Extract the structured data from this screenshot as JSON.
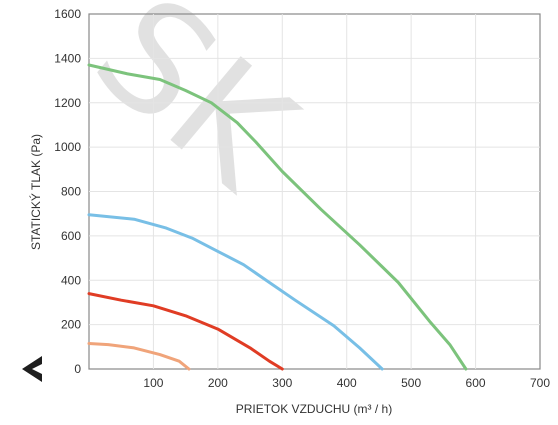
{
  "chart_data": {
    "type": "line",
    "xlabel": "PRIETOK VZDUCHU (m³ / h)",
    "ylabel": "STATICKÝ TLAK (Pa)",
    "xlim": [
      0,
      700
    ],
    "ylim": [
      0,
      1600
    ],
    "x_ticks": [
      100,
      200,
      300,
      400,
      500,
      600,
      700
    ],
    "y_ticks": [
      0,
      200,
      400,
      600,
      800,
      1000,
      1200,
      1400,
      1600
    ],
    "grid": true,
    "legend": "none",
    "series": [
      {
        "color": "#f0a47a",
        "points": [
          [
            0,
            115
          ],
          [
            30,
            110
          ],
          [
            70,
            95
          ],
          [
            110,
            65
          ],
          [
            140,
            35
          ],
          [
            155,
            0
          ]
        ]
      },
      {
        "color": "#e03c24",
        "points": [
          [
            0,
            340
          ],
          [
            50,
            310
          ],
          [
            100,
            285
          ],
          [
            150,
            240
          ],
          [
            200,
            180
          ],
          [
            250,
            95
          ],
          [
            280,
            35
          ],
          [
            300,
            0
          ]
        ]
      },
      {
        "color": "#78bfe6",
        "points": [
          [
            0,
            695
          ],
          [
            70,
            675
          ],
          [
            120,
            635
          ],
          [
            160,
            590
          ],
          [
            200,
            530
          ],
          [
            240,
            470
          ],
          [
            280,
            390
          ],
          [
            320,
            310
          ],
          [
            380,
            195
          ],
          [
            420,
            95
          ],
          [
            455,
            0
          ]
        ]
      },
      {
        "color": "#7cc37c",
        "points": [
          [
            0,
            1370
          ],
          [
            60,
            1330
          ],
          [
            110,
            1305
          ],
          [
            150,
            1255
          ],
          [
            190,
            1200
          ],
          [
            230,
            1110
          ],
          [
            260,
            1020
          ],
          [
            300,
            890
          ],
          [
            360,
            720
          ],
          [
            420,
            560
          ],
          [
            480,
            390
          ],
          [
            530,
            210
          ],
          [
            560,
            110
          ],
          [
            585,
            0
          ]
        ]
      }
    ]
  },
  "nav": {
    "back_icon": "chevron-left-icon"
  },
  "watermark": {
    "text": "SK"
  }
}
